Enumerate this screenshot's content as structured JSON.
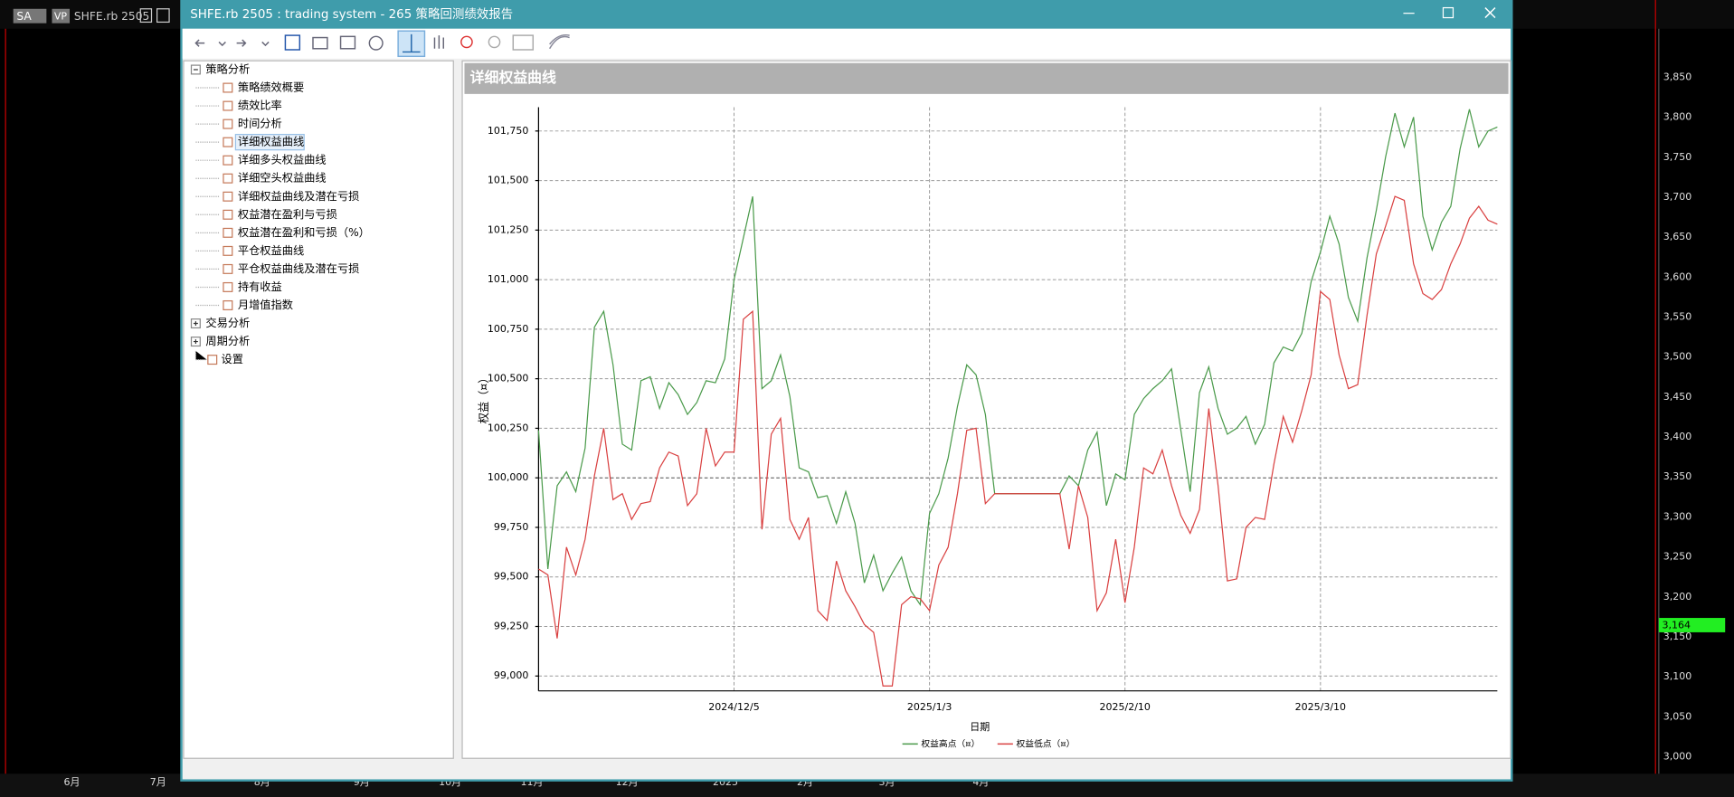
{
  "top_bar": {
    "symbol_tag": "SA",
    "vp": "VP",
    "symbol": "SHFE.rb 2505"
  },
  "window": {
    "title": "SHFE.rb 2505 : trading system - 265 策略回测绩效报告"
  },
  "tree": [
    {
      "label": "策略分析",
      "children": [
        "策略绩效概要",
        "绩效比率",
        "时间分析",
        "详细权益曲线",
        "详细多头权益曲线",
        "详细空头权益曲线",
        "详细权益曲线及潜在亏损",
        "权益潜在盈利与亏损",
        "权益潜在盈利和亏损（%）",
        "平仓权益曲线",
        "平仓权益曲线及潜在亏损",
        "持有收益",
        "月增值指数"
      ]
    },
    {
      "label": "交易分析"
    },
    {
      "label": "周期分析"
    },
    {
      "label": "设置"
    }
  ],
  "background_chart": {
    "price_labels": [
      "3,850",
      "3,800",
      "3,750",
      "3,700",
      "3,650",
      "3,600",
      "3,550",
      "3,500",
      "3,450",
      "3,400",
      "3,350",
      "3,300",
      "3,250",
      "3,200",
      "3,150",
      "3,100",
      "3,050",
      "3,000"
    ],
    "month_labels": [
      "6月",
      "7月",
      "8月",
      "9月",
      "10月",
      "11月",
      "12月",
      "2025",
      "2月",
      "3月",
      "4月"
    ],
    "last_price": "3,164"
  },
  "chart_data": {
    "type": "line",
    "title": "详细权益曲线",
    "x_label": "日期",
    "y_label": "权益（¤）",
    "grid": true,
    "legend": "bottom",
    "categories": [
      null,
      null,
      null,
      null,
      null,
      null,
      null,
      null,
      null,
      null,
      null,
      null,
      null,
      null,
      null,
      null,
      null,
      null,
      null,
      null,
      null,
      "2024/12/5",
      null,
      null,
      null,
      null,
      null,
      null,
      null,
      null,
      null,
      null,
      null,
      null,
      null,
      null,
      null,
      null,
      null,
      null,
      null,
      null,
      "2025/1/3",
      null,
      null,
      null,
      null,
      null,
      null,
      null,
      null,
      null,
      null,
      null,
      null,
      null,
      null,
      null,
      null,
      null,
      null,
      null,
      null,
      "2025/2/10",
      null,
      null,
      null,
      null,
      null,
      null,
      null,
      null,
      null,
      null,
      null,
      null,
      null,
      null,
      null,
      null,
      null,
      null,
      null,
      null,
      "2025/3/10",
      null,
      null,
      null,
      null,
      null,
      null,
      null,
      null,
      null,
      null,
      null,
      null,
      null,
      null,
      null,
      null,
      null,
      null,
      null
    ],
    "ylim": [
      98925,
      101870
    ],
    "yticks": [
      {
        "value": 99000,
        "label": "99,000"
      },
      {
        "value": 99250,
        "label": "99,250"
      },
      {
        "value": 99500,
        "label": "99,500"
      },
      {
        "value": 99750,
        "label": "99,750"
      },
      {
        "value": 100000,
        "label": "100,000"
      },
      {
        "value": 100250,
        "label": "100,250"
      },
      {
        "value": 100500,
        "label": "100,500"
      },
      {
        "value": 100750,
        "label": "100,750"
      },
      {
        "value": 101000,
        "label": "101,000"
      },
      {
        "value": 101250,
        "label": "101,250"
      },
      {
        "value": 101500,
        "label": "101,500"
      },
      {
        "value": 101750,
        "label": "101,750"
      }
    ],
    "series": [
      {
        "name": "权益高点（¤）",
        "color": "#4a9a4a",
        "values": [
          100240,
          99540,
          99960,
          100030,
          99930,
          100150,
          100760,
          100840,
          100570,
          100170,
          100140,
          100490,
          100510,
          100350,
          100480,
          100420,
          100320,
          100380,
          100490,
          100480,
          100600,
          101000,
          101210,
          101420,
          100450,
          100490,
          100620,
          100410,
          100050,
          100030,
          99900,
          99910,
          99770,
          99930,
          99770,
          99470,
          99610,
          99430,
          99520,
          99600,
          99430,
          99360,
          99820,
          99920,
          100100,
          100360,
          100570,
          100520,
          100320,
          99920,
          99920,
          99920,
          99920,
          99920,
          99920,
          99920,
          99920,
          100010,
          99960,
          100140,
          100230,
          99860,
          100020,
          99990,
          100320,
          100400,
          100450,
          100490,
          100550,
          100240,
          99930,
          100430,
          100560,
          100350,
          100220,
          100250,
          100310,
          100170,
          100270,
          100580,
          100660,
          100640,
          100730,
          100990,
          101140,
          101320,
          101180,
          100910,
          100790,
          101110,
          101350,
          101620,
          101840,
          101670,
          101820,
          101320,
          101150,
          101290,
          101370,
          101660,
          101860,
          101670,
          101750,
          101770
        ]
      },
      {
        "name": "权益低点（¤）",
        "color": "#d94040",
        "values": [
          99540,
          99510,
          99190,
          99650,
          99510,
          99690,
          100010,
          100250,
          99890,
          99920,
          99790,
          99870,
          99880,
          100050,
          100130,
          100110,
          99860,
          99920,
          100250,
          100060,
          100130,
          100130,
          100800,
          100840,
          99740,
          100220,
          100300,
          99790,
          99690,
          99800,
          99330,
          99280,
          99580,
          99430,
          99350,
          99260,
          99220,
          98950,
          98950,
          99360,
          99400,
          99390,
          99330,
          99560,
          99650,
          99920,
          100240,
          100250,
          99870,
          99920,
          99920,
          99920,
          99920,
          99920,
          99920,
          99920,
          99920,
          99640,
          99960,
          99800,
          99330,
          99420,
          99690,
          99370,
          99650,
          100050,
          100020,
          100140,
          99960,
          99810,
          99720,
          99840,
          100350,
          99960,
          99480,
          99490,
          99750,
          99800,
          99790,
          100070,
          100310,
          100180,
          100340,
          100520,
          100940,
          100900,
          100620,
          100450,
          100470,
          100820,
          101130,
          101270,
          101420,
          101400,
          101080,
          100930,
          100900,
          100950,
          101080,
          101180,
          101310,
          101370,
          101300,
          101280
        ]
      }
    ]
  }
}
